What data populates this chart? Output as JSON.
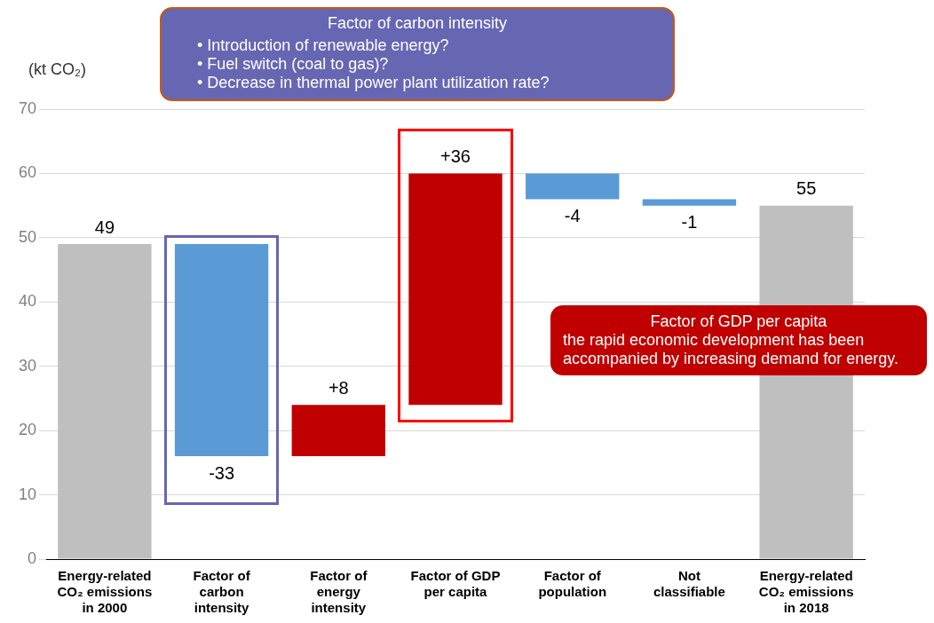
{
  "chart_data": {
    "type": "bar",
    "ylabel": "(kt CO₂)",
    "categories": [
      "Energy-related CO₂ emissions in 2000",
      "Factor of carbon intensity",
      "Factor of energy intensity",
      "Factor of GDP per capita",
      "Factor of population",
      "Not classifiable",
      "Energy-related CO₂ emissions in 2018"
    ],
    "base": [
      0,
      49,
      16,
      24,
      60,
      56,
      0
    ],
    "values": [
      49,
      -33,
      8,
      36,
      -4,
      -1,
      55
    ],
    "colors": [
      "#bfbfbf",
      "#5b9bd5",
      "#c00000",
      "#c00000",
      "#5b9bd5",
      "#5b9bd5",
      "#bfbfbf"
    ],
    "value_labels": [
      "49",
      "-33",
      "+8",
      "+36",
      "-4",
      "-1",
      "55"
    ],
    "ylim": [
      0,
      70
    ],
    "yticks": [
      0,
      10,
      20,
      30,
      40,
      50,
      60,
      70
    ],
    "grid": "y",
    "annotations": [
      "Factor of carbon intensity",
      "• Introduction of renewable energy?",
      "• Fuel switch (coal to gas)?",
      "• Decrease in thermal power plant utilization rate?",
      "Factor of GDP per capita",
      "the rapid economic development has been accompanied by increasing demand for energy."
    ]
  }
}
